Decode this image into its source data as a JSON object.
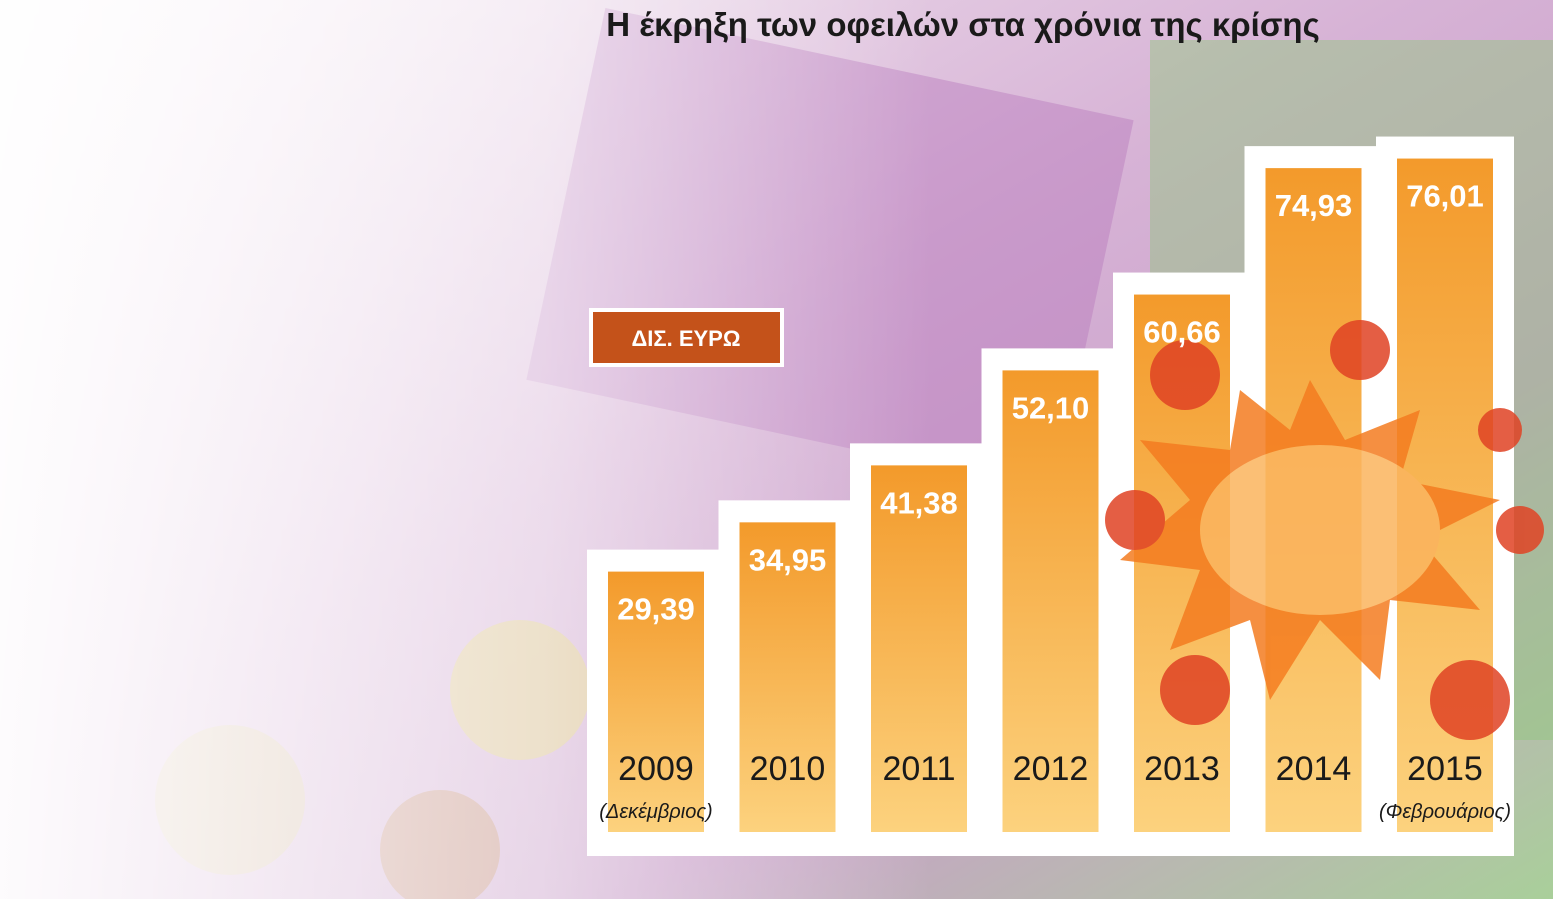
{
  "chart_data": {
    "type": "bar",
    "title": "Η έκρηξη των οφειλών στα χρόνια της κρίσης",
    "unit_label": "ΔΙΣ. ΕΥΡΩ",
    "categories": [
      "2009",
      "2010",
      "2011",
      "2012",
      "2013",
      "2014",
      "2015"
    ],
    "category_notes": [
      "(Δεκέμβριος)",
      null,
      null,
      null,
      null,
      null,
      "(Φεβρουάριος)"
    ],
    "values": [
      29.39,
      34.95,
      41.38,
      52.1,
      60.66,
      74.93,
      76.01
    ],
    "value_labels": [
      "29,39",
      "34,95",
      "41,38",
      "52,10",
      "60,66",
      "74,93",
      "76,01"
    ],
    "color": "#f39a2b"
  }
}
